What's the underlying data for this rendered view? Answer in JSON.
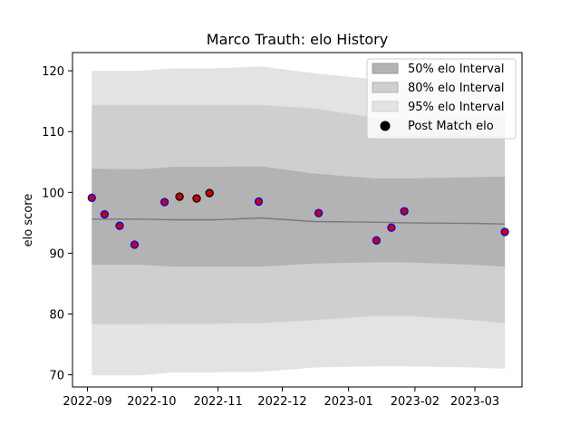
{
  "chart_data": {
    "type": "line",
    "title": "Marco Trauth: elo History",
    "xlabel": "",
    "ylabel": "elo score",
    "x_ticks": [
      "2022-09",
      "2022-10",
      "2022-11",
      "2022-12",
      "2023-01",
      "2023-02",
      "2023-03"
    ],
    "y_ticks": [
      70,
      80,
      90,
      100,
      110,
      120
    ],
    "xlim": [
      "2022-08-25",
      "2023-03-23"
    ],
    "ylim": [
      68,
      123
    ],
    "grid": false,
    "legend_position": "top-right",
    "legend": {
      "band50": "50% elo Interval",
      "band80": "80% elo Interval",
      "band95": "95% elo Interval",
      "points": "Post Match elo"
    },
    "intervals": {
      "x": [
        "2022-09-03",
        "2022-09-26",
        "2022-10-11",
        "2022-10-31",
        "2022-11-21",
        "2022-12-16",
        "2023-01-13",
        "2023-01-28",
        "2023-02-28",
        "2023-03-15"
      ],
      "mean": [
        95.6,
        95.6,
        95.5,
        95.5,
        95.8,
        95.2,
        95.1,
        95.0,
        94.9,
        94.8
      ],
      "band50": {
        "low": [
          88.1,
          88.1,
          87.8,
          87.8,
          87.8,
          88.3,
          88.5,
          88.5,
          88.1,
          87.8
        ],
        "high": [
          103.9,
          103.8,
          104.2,
          104.2,
          104.3,
          103.1,
          102.3,
          102.3,
          102.5,
          102.6
        ]
      },
      "band80": {
        "low": [
          78.3,
          78.3,
          78.4,
          78.4,
          78.5,
          79.0,
          79.7,
          79.7,
          79.0,
          78.5
        ],
        "high": [
          114.4,
          114.4,
          114.4,
          114.4,
          114.4,
          113.8,
          112.3,
          112.0,
          112.5,
          112.5
        ]
      },
      "band95": {
        "low": [
          69.9,
          69.9,
          70.4,
          70.4,
          70.5,
          71.2,
          71.4,
          71.4,
          71.2,
          71.0
        ],
        "high": [
          120.0,
          120.0,
          120.4,
          120.4,
          120.7,
          119.6,
          118.6,
          118.4,
          118.8,
          118.7
        ]
      }
    },
    "points": [
      {
        "x": "2022-09-03",
        "y": 99.1,
        "style": "blue"
      },
      {
        "x": "2022-09-09",
        "y": 96.4,
        "style": "blue"
      },
      {
        "x": "2022-09-16",
        "y": 94.5,
        "style": "blue"
      },
      {
        "x": "2022-09-23",
        "y": 91.4,
        "style": "blue"
      },
      {
        "x": "2022-10-07",
        "y": 98.4,
        "style": "blue"
      },
      {
        "x": "2022-10-14",
        "y": 99.3,
        "style": "black"
      },
      {
        "x": "2022-10-22",
        "y": 99.0,
        "style": "black"
      },
      {
        "x": "2022-10-28",
        "y": 99.9,
        "style": "black"
      },
      {
        "x": "2022-11-20",
        "y": 98.5,
        "style": "blue"
      },
      {
        "x": "2022-12-18",
        "y": 96.6,
        "style": "blue"
      },
      {
        "x": "2023-01-14",
        "y": 92.1,
        "style": "blue"
      },
      {
        "x": "2023-01-21",
        "y": 94.2,
        "style": "blue"
      },
      {
        "x": "2023-01-27",
        "y": 96.9,
        "style": "blue"
      },
      {
        "x": "2023-03-15",
        "y": 93.5,
        "style": "blue"
      }
    ],
    "colors": {
      "band50": "#b3b3b3",
      "band80": "#cfcfcf",
      "band95": "#e3e3e3",
      "mean_line": "#7a7a7a",
      "point_fill": "#cc0000",
      "point_edge_blue": "#0000ee",
      "point_edge_black": "#000000"
    }
  }
}
